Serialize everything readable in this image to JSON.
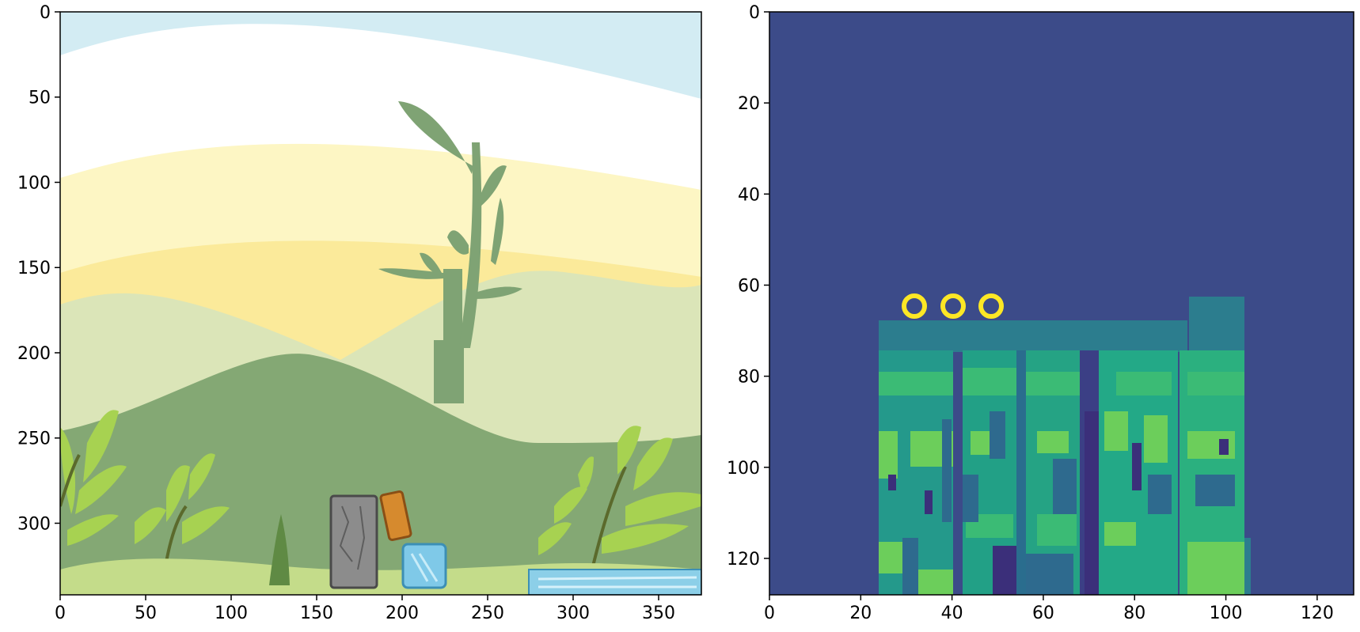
{
  "left_plot": {
    "x_ticks": [
      "0",
      "50",
      "100",
      "150",
      "200",
      "250",
      "300",
      "350"
    ],
    "y_ticks": [
      "0",
      "50",
      "100",
      "150",
      "200",
      "250",
      "300"
    ],
    "x_range": [
      0,
      375
    ],
    "y_range": [
      0,
      342
    ],
    "scene": {
      "sky_colors": [
        "#d3ecf3",
        "#ffffff",
        "#fdf6c4",
        "#fbea9a"
      ],
      "hill_colors": [
        "#dbe5b8",
        "#84a874"
      ],
      "plant_silhouette_color": "#7fa374",
      "foliage_color": "#a7d251",
      "objects": [
        "stone-block",
        "wood-block",
        "ice-block",
        "ice-platform"
      ]
    }
  },
  "right_plot": {
    "x_ticks": [
      "0",
      "20",
      "40",
      "60",
      "80",
      "100",
      "120"
    ],
    "y_ticks": [
      "0",
      "20",
      "40",
      "60",
      "80",
      "100",
      "120"
    ],
    "x_range": [
      0,
      128
    ],
    "y_range": [
      0,
      128
    ],
    "colormap": "viridis",
    "background_color": "#3c4b89",
    "marker_color": "#fde725",
    "markers_count": 3
  }
}
